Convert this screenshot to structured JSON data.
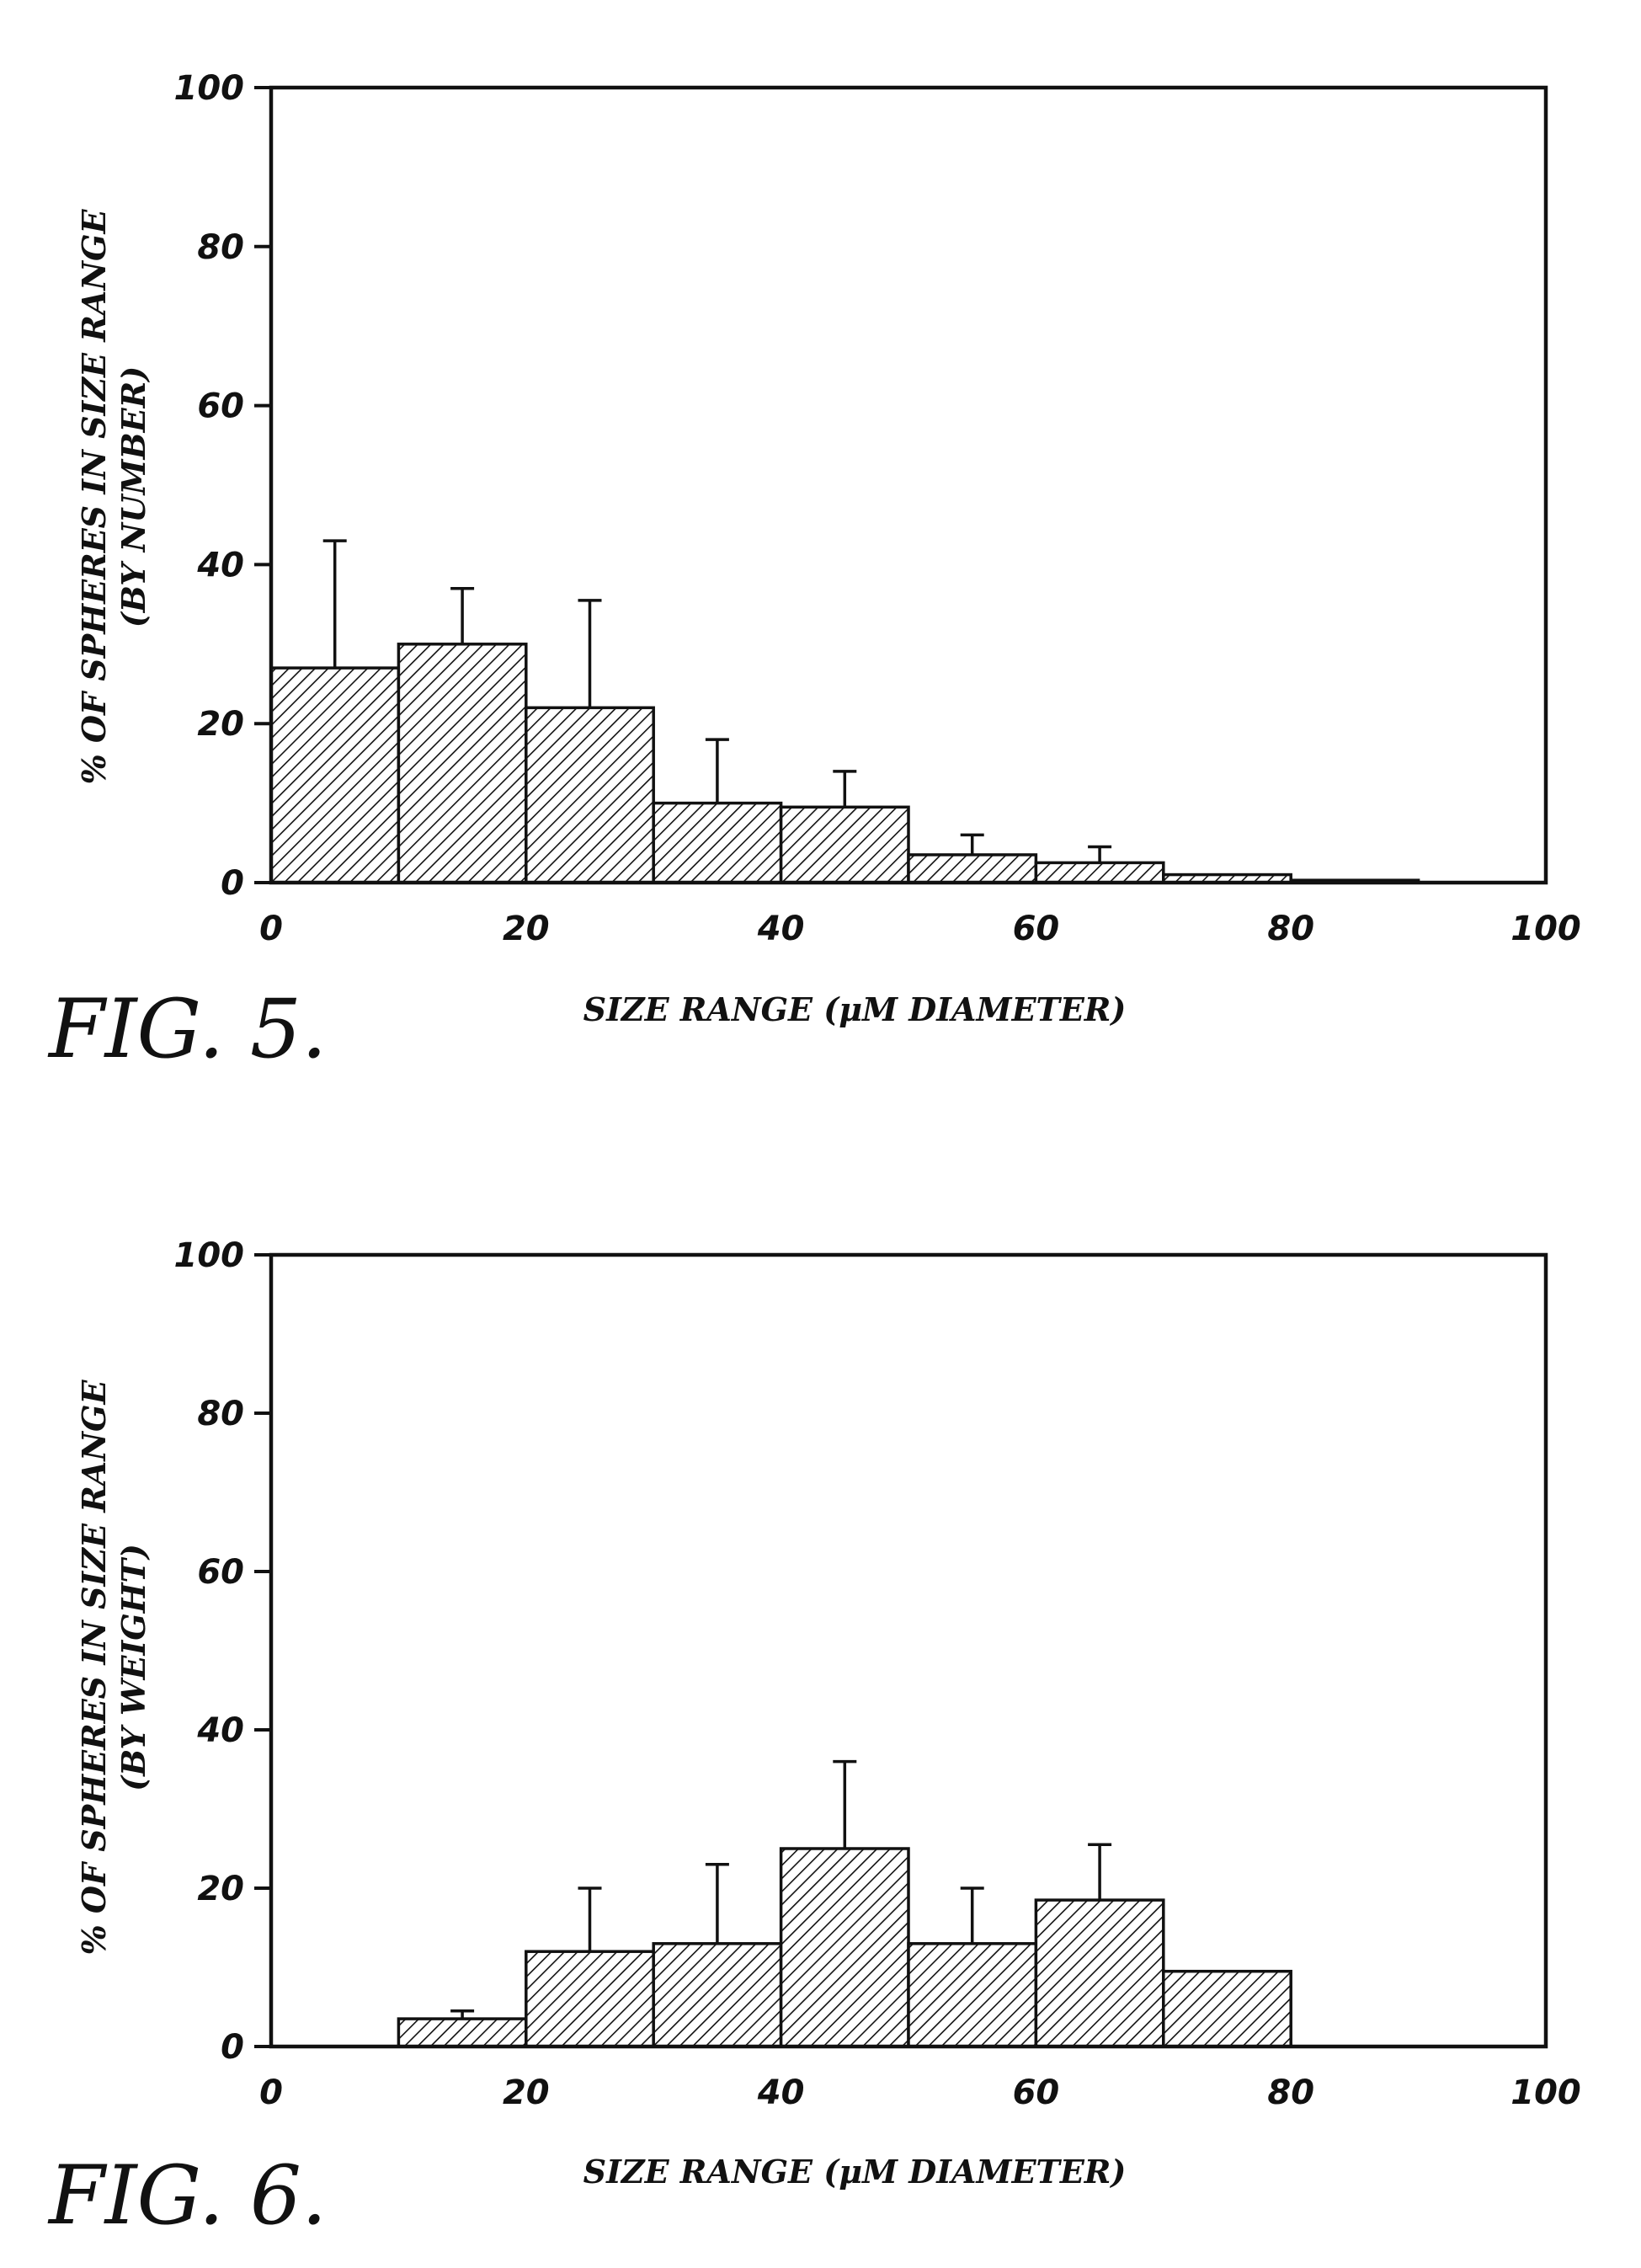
{
  "chart_data": [
    {
      "type": "bar",
      "figure_label": "FIG. 5.",
      "xlabel": "SIZE RANGE (μM DIAMETER)",
      "ylabel_line1": "% OF SPHERES IN SIZE RANGE",
      "ylabel_line2": "(BY NUMBER)",
      "xlim": [
        0,
        100
      ],
      "ylim": [
        0,
        100
      ],
      "x_ticks": [
        "0",
        "20",
        "40",
        "60",
        "80",
        "100"
      ],
      "y_ticks": [
        "0",
        "20",
        "40",
        "60",
        "80",
        "100"
      ],
      "bin_width": 10,
      "bins": [
        {
          "x": 0,
          "value": 27,
          "error": 16
        },
        {
          "x": 10,
          "value": 30,
          "error": 7
        },
        {
          "x": 20,
          "value": 22,
          "error": 13.5
        },
        {
          "x": 30,
          "value": 10,
          "error": 8
        },
        {
          "x": 40,
          "value": 9.5,
          "error": 4.5
        },
        {
          "x": 50,
          "value": 3.5,
          "error": 2.5
        },
        {
          "x": 60,
          "value": 2.5,
          "error": 2
        },
        {
          "x": 70,
          "value": 1,
          "error": 0
        },
        {
          "x": 80,
          "value": 0.3,
          "error": 0
        },
        {
          "x": 90,
          "value": 0,
          "error": 0
        }
      ],
      "fill_pattern": "diagonal-hatch",
      "grid": false
    },
    {
      "type": "bar",
      "figure_label": "FIG. 6.",
      "xlabel": "SIZE RANGE (μM DIAMETER)",
      "ylabel_line1": "% OF SPHERES IN SIZE RANGE",
      "ylabel_line2": "(BY WEIGHT)",
      "xlim": [
        0,
        100
      ],
      "ylim": [
        0,
        100
      ],
      "x_ticks": [
        "0",
        "20",
        "40",
        "60",
        "80",
        "100"
      ],
      "y_ticks": [
        "0",
        "20",
        "40",
        "60",
        "80",
        "100"
      ],
      "bin_width": 10,
      "bins": [
        {
          "x": 10,
          "value": 3.5,
          "error": 1
        },
        {
          "x": 20,
          "value": 12,
          "error": 8
        },
        {
          "x": 30,
          "value": 13,
          "error": 10
        },
        {
          "x": 40,
          "value": 25,
          "error": 11
        },
        {
          "x": 50,
          "value": 13,
          "error": 7
        },
        {
          "x": 60,
          "value": 18.5,
          "error": 7
        },
        {
          "x": 70,
          "value": 9.5,
          "error": 0
        }
      ],
      "fill_pattern": "diagonal-hatch",
      "grid": false
    }
  ]
}
